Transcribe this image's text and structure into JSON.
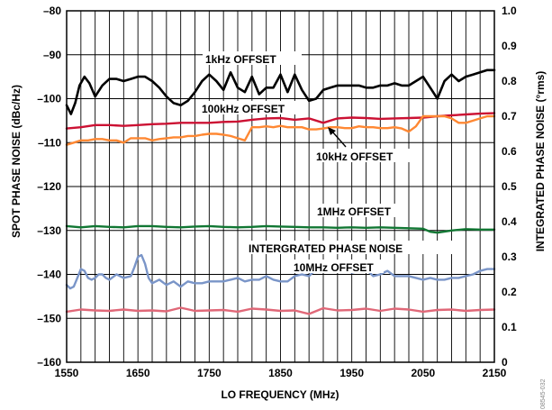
{
  "chart_data": {
    "type": "line",
    "xlabel": "LO FREQUENCY (MHz)",
    "ylabel": "SPOT PHASE NOISE (dBc/Hz)",
    "y2label": "INTEGRATED PHASE NOISE (°rms)",
    "xlim": [
      1550,
      2150
    ],
    "ylim": [
      -160,
      -80
    ],
    "y2lim": [
      0,
      1.0
    ],
    "x_ticks": [
      "1550",
      "1650",
      "1750",
      "1850",
      "1950",
      "2050",
      "2150"
    ],
    "y_ticks": [
      "–80",
      "–90",
      "–100",
      "–110",
      "–120",
      "–130",
      "–140",
      "–150",
      "–160"
    ],
    "y2_ticks": [
      "1.0",
      "0.9",
      "0.8",
      "0.7",
      "0.6",
      "0.5",
      "0.4",
      "0.3",
      "0.2",
      "0.1",
      "0"
    ],
    "grid": true,
    "annotations": {
      "s1k": "1kHz OFFSET",
      "s100k": "100kHz OFFSET",
      "s10k": "10kHz OFFSET",
      "s1m": "1MHz OFFSET",
      "integ": "INTERGRATED PHASE NOISE",
      "s10m": "10MHz OFFSET"
    },
    "watermark": "08545-032",
    "series": [
      {
        "key": "s1k",
        "axis": "left",
        "color": "#000000",
        "x": [
          1550,
          1556,
          1562,
          1568,
          1575,
          1582,
          1590,
          1600,
          1610,
          1620,
          1630,
          1640,
          1650,
          1660,
          1670,
          1680,
          1690,
          1700,
          1710,
          1720,
          1730,
          1740,
          1750,
          1760,
          1770,
          1780,
          1790,
          1800,
          1810,
          1820,
          1830,
          1840,
          1850,
          1860,
          1870,
          1880,
          1890,
          1900,
          1910,
          1920,
          1930,
          1940,
          1950,
          1960,
          1970,
          1980,
          1990,
          2000,
          2010,
          2020,
          2030,
          2040,
          2050,
          2060,
          2070,
          2080,
          2090,
          2100,
          2110,
          2120,
          2130,
          2140,
          2150
        ],
        "y": [
          -101.5,
          -103.5,
          -101,
          -97,
          -95,
          -96.5,
          -99.5,
          -97,
          -95.5,
          -95.5,
          -96,
          -95.5,
          -95,
          -95,
          -96,
          -97.5,
          -99.5,
          -101,
          -101.5,
          -100.5,
          -98.5,
          -96,
          -94.5,
          -96,
          -98,
          -94,
          -97.5,
          -98.5,
          -95,
          -99,
          -97.5,
          -97.5,
          -94.5,
          -98.5,
          -94.5,
          -98,
          -100.5,
          -100,
          -98,
          -97.5,
          -97,
          -97,
          -97,
          -97,
          -97.5,
          -97.5,
          -97,
          -97,
          -96.5,
          -97,
          -97,
          -96,
          -95,
          -97.5,
          -100,
          -96,
          -94.5,
          -96,
          -95,
          -94.5,
          -94,
          -93.5,
          -93.5
        ]
      },
      {
        "key": "s100k",
        "axis": "left",
        "color": "#cc1133",
        "x": [
          1550,
          1570,
          1590,
          1610,
          1630,
          1650,
          1670,
          1690,
          1710,
          1730,
          1750,
          1770,
          1790,
          1810,
          1830,
          1850,
          1870,
          1890,
          1910,
          1930,
          1950,
          1970,
          1990,
          2010,
          2030,
          2050,
          2070,
          2090,
          2110,
          2130,
          2150
        ],
        "y": [
          -106.8,
          -106.5,
          -106,
          -106,
          -106.2,
          -106,
          -105.8,
          -105.7,
          -105.5,
          -105.5,
          -105.5,
          -105.3,
          -105.2,
          -104.8,
          -104.5,
          -104.4,
          -104.8,
          -104.5,
          -105.5,
          -104.5,
          -104.3,
          -104.4,
          -104.6,
          -104.5,
          -104.4,
          -104.3,
          -104,
          -103.8,
          -103.6,
          -103.4,
          -103.3
        ]
      },
      {
        "key": "s10k",
        "axis": "left",
        "color": "#ff8833",
        "x": [
          1550,
          1560,
          1570,
          1580,
          1590,
          1600,
          1610,
          1620,
          1630,
          1640,
          1650,
          1660,
          1670,
          1680,
          1690,
          1700,
          1710,
          1720,
          1730,
          1740,
          1750,
          1760,
          1770,
          1780,
          1790,
          1800,
          1810,
          1820,
          1830,
          1840,
          1850,
          1860,
          1870,
          1880,
          1890,
          1900,
          1910,
          1920,
          1930,
          1940,
          1950,
          1960,
          1970,
          1980,
          1990,
          2000,
          2010,
          2020,
          2030,
          2040,
          2050,
          2060,
          2070,
          2080,
          2090,
          2100,
          2110,
          2120,
          2130,
          2140,
          2150
        ],
        "y": [
          -110.5,
          -110,
          -109.5,
          -109.5,
          -109.2,
          -109.2,
          -109.5,
          -109.5,
          -110,
          -109,
          -109,
          -109,
          -109.5,
          -109.2,
          -109,
          -108.8,
          -108.8,
          -108.5,
          -108.5,
          -108.2,
          -108,
          -108,
          -108.2,
          -108.5,
          -109,
          -109.5,
          -106.5,
          -106.5,
          -106.3,
          -106.5,
          -106.2,
          -106.5,
          -106.5,
          -106.5,
          -107,
          -107,
          -106.8,
          -106.5,
          -106.5,
          -106.7,
          -106.7,
          -106.3,
          -106.5,
          -106.5,
          -106.7,
          -106.7,
          -106.5,
          -106.8,
          -107.5,
          -106.3,
          -104,
          -104,
          -104,
          -104,
          -104.5,
          -105.5,
          -105.5,
          -105,
          -104.5,
          -104,
          -104
        ]
      },
      {
        "key": "s1m",
        "axis": "left",
        "color": "#117733",
        "x": [
          1550,
          1570,
          1590,
          1610,
          1630,
          1650,
          1670,
          1690,
          1710,
          1730,
          1750,
          1770,
          1790,
          1810,
          1830,
          1850,
          1870,
          1890,
          1910,
          1930,
          1950,
          1970,
          1990,
          2010,
          2030,
          2050,
          2060,
          2070,
          2090,
          2110,
          2130,
          2150
        ],
        "y": [
          -129,
          -129.3,
          -129,
          -129.2,
          -129.3,
          -129,
          -129,
          -129.2,
          -129.3,
          -129.1,
          -129,
          -129.2,
          -129.3,
          -129.2,
          -129,
          -129.1,
          -129.2,
          -129.3,
          -129.3,
          -129.4,
          -129.3,
          -129.4,
          -129.3,
          -129.4,
          -129.5,
          -129.6,
          -130.3,
          -130.5,
          -130,
          -129.7,
          -129.8,
          -129.8
        ]
      },
      {
        "key": "integ",
        "axis": "right",
        "color": "#7a95c8",
        "x": [
          1550,
          1555,
          1560,
          1565,
          1570,
          1575,
          1580,
          1585,
          1590,
          1595,
          1600,
          1605,
          1610,
          1620,
          1630,
          1640,
          1645,
          1650,
          1655,
          1660,
          1665,
          1670,
          1680,
          1690,
          1700,
          1710,
          1720,
          1730,
          1740,
          1750,
          1760,
          1770,
          1780,
          1790,
          1800,
          1810,
          1820,
          1830,
          1840,
          1850,
          1860,
          1870,
          1880,
          1890,
          1900,
          1910,
          1920,
          1930,
          1940,
          1950,
          1960,
          1970,
          1980,
          1990,
          2000,
          2010,
          2020,
          2030,
          2040,
          2050,
          2060,
          2070,
          2080,
          2090,
          2100,
          2110,
          2120,
          2130,
          2140,
          2150
        ],
        "y": [
          0.22,
          0.21,
          0.215,
          0.24,
          0.265,
          0.26,
          0.24,
          0.235,
          0.24,
          0.25,
          0.25,
          0.24,
          0.235,
          0.25,
          0.24,
          0.245,
          0.27,
          0.3,
          0.305,
          0.28,
          0.24,
          0.225,
          0.235,
          0.22,
          0.23,
          0.215,
          0.23,
          0.225,
          0.225,
          0.23,
          0.23,
          0.23,
          0.235,
          0.24,
          0.23,
          0.235,
          0.235,
          0.245,
          0.235,
          0.23,
          0.23,
          0.245,
          0.25,
          0.245,
          0.265,
          0.27,
          0.26,
          0.262,
          0.265,
          0.255,
          0.26,
          0.265,
          0.245,
          0.25,
          0.26,
          0.245,
          0.245,
          0.245,
          0.24,
          0.235,
          0.24,
          0.235,
          0.235,
          0.24,
          0.24,
          0.245,
          0.25,
          0.26,
          0.265,
          0.265
        ]
      },
      {
        "key": "s10m",
        "axis": "left",
        "color": "#e06878",
        "x": [
          1550,
          1570,
          1590,
          1610,
          1630,
          1650,
          1670,
          1690,
          1710,
          1730,
          1750,
          1770,
          1790,
          1810,
          1830,
          1850,
          1870,
          1890,
          1910,
          1930,
          1950,
          1970,
          1990,
          2010,
          2030,
          2050,
          2070,
          2090,
          2110,
          2130,
          2150
        ],
        "y": [
          -148.5,
          -148,
          -148.2,
          -148.3,
          -148,
          -148.3,
          -148.2,
          -148.4,
          -147.6,
          -148.3,
          -148.2,
          -148.1,
          -148.5,
          -147.8,
          -148,
          -148.3,
          -148.2,
          -149,
          -147.7,
          -148.2,
          -148.1,
          -147.8,
          -148.3,
          -147.8,
          -148,
          -148.5,
          -148.1,
          -148,
          -148.3,
          -148.1,
          -148
        ]
      }
    ]
  }
}
